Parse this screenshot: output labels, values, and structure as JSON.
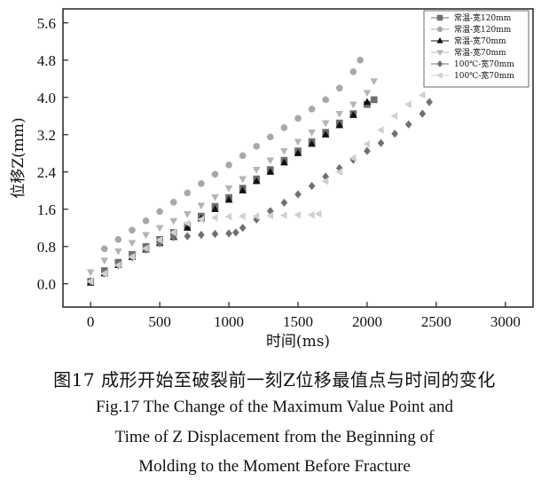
{
  "chart_data": {
    "type": "scatter",
    "xlabel": "时间(ms)",
    "ylabel": "位移Z(mm)",
    "xlim": [
      -200,
      3200
    ],
    "ylim": [
      -0.5,
      5.9
    ],
    "xticks": [
      "0",
      "500",
      "1000",
      "1500",
      "2000",
      "2500",
      "3000"
    ],
    "yticks": [
      "0.0",
      "0.8",
      "1.6",
      "2.4",
      "3.2",
      "4.0",
      "4.8",
      "5.6"
    ],
    "grid": false,
    "legend_position": "top-right",
    "series": [
      {
        "name": "常温-宽120mm",
        "marker": "square",
        "color": "#6e6e6e",
        "x": [
          0,
          100,
          200,
          300,
          400,
          500,
          600,
          700,
          800,
          900,
          1000,
          1100,
          1200,
          1300,
          1400,
          1500,
          1600,
          1700,
          1800,
          1900,
          2000,
          2050
        ],
        "y": [
          0.05,
          0.28,
          0.46,
          0.63,
          0.8,
          0.95,
          1.1,
          1.25,
          1.45,
          1.66,
          1.85,
          2.05,
          2.25,
          2.45,
          2.65,
          2.85,
          3.05,
          3.25,
          3.45,
          3.65,
          3.85,
          3.95
        ]
      },
      {
        "name": "常温-宽120mm",
        "marker": "circle",
        "color": "#a8a8a8",
        "x": [
          100,
          200,
          300,
          400,
          500,
          600,
          700,
          800,
          900,
          1000,
          1100,
          1200,
          1300,
          1400,
          1500,
          1600,
          1700,
          1800,
          1900,
          1950
        ],
        "y": [
          0.75,
          0.95,
          1.15,
          1.35,
          1.55,
          1.75,
          1.95,
          2.15,
          2.35,
          2.55,
          2.75,
          2.95,
          3.15,
          3.35,
          3.55,
          3.75,
          3.95,
          4.2,
          4.55,
          4.8
        ]
      },
      {
        "name": "常温-宽70mm",
        "marker": "triangle-up",
        "color": "#111111",
        "x": [
          0,
          100,
          200,
          300,
          400,
          500,
          600,
          700,
          800,
          900,
          1000,
          1100,
          1200,
          1300,
          1400,
          1500,
          1600,
          1700,
          1800,
          1900,
          2000
        ],
        "y": [
          0.02,
          0.22,
          0.4,
          0.57,
          0.73,
          0.87,
          1.0,
          1.2,
          1.4,
          1.6,
          1.8,
          2.0,
          2.2,
          2.4,
          2.6,
          2.8,
          3.0,
          3.2,
          3.4,
          3.62,
          3.9
        ]
      },
      {
        "name": "常温-宽70mm",
        "marker": "triangle-down",
        "color": "#b4b4b4",
        "x": [
          0,
          100,
          200,
          300,
          400,
          500,
          600,
          700,
          800,
          900,
          1000,
          1100,
          1200,
          1300,
          1400,
          1500,
          1600,
          1700,
          1800,
          1900,
          2000,
          2050
        ],
        "y": [
          0.25,
          0.5,
          0.7,
          0.88,
          1.05,
          1.2,
          1.35,
          1.5,
          1.68,
          1.86,
          2.05,
          2.25,
          2.45,
          2.65,
          2.85,
          3.05,
          3.25,
          3.45,
          3.65,
          3.85,
          4.1,
          4.35
        ]
      },
      {
        "name": "100℃-宽70mm",
        "marker": "diamond",
        "color": "#707070",
        "x": [
          0,
          100,
          200,
          300,
          400,
          500,
          600,
          700,
          800,
          900,
          1000,
          1050,
          1100,
          1200,
          1300,
          1400,
          1500,
          1600,
          1700,
          1800,
          1900,
          2000,
          2100,
          2200,
          2300,
          2400,
          2450
        ],
        "y": [
          0.05,
          0.22,
          0.4,
          0.57,
          0.73,
          0.87,
          1.0,
          1.02,
          1.05,
          1.07,
          1.08,
          1.1,
          1.2,
          1.38,
          1.56,
          1.74,
          1.92,
          2.1,
          2.3,
          2.48,
          2.66,
          2.85,
          3.02,
          3.22,
          3.42,
          3.65,
          3.9
        ]
      },
      {
        "name": "100℃-宽70mm",
        "marker": "triangle-left",
        "color": "#d0d0d0",
        "x": [
          0,
          100,
          200,
          300,
          400,
          500,
          600,
          700,
          800,
          900,
          1000,
          1100,
          1200,
          1300,
          1400,
          1500,
          1600,
          1650,
          1700,
          1800,
          1900,
          2000,
          2100,
          2200,
          2300,
          2400
        ],
        "y": [
          0.05,
          0.22,
          0.4,
          0.58,
          0.76,
          0.94,
          1.1,
          1.3,
          1.38,
          1.42,
          1.44,
          1.45,
          1.45,
          1.46,
          1.47,
          1.48,
          1.48,
          1.5,
          2.2,
          2.4,
          2.7,
          3.0,
          3.3,
          3.6,
          3.85,
          4.05
        ]
      }
    ]
  },
  "caption": {
    "zh": "图17  成形开始至破裂前一刻Z位移最值点与时间的变化",
    "en1": "Fig.17  The  Change  of  the  Maximum  Value  Point  and",
    "en2": "Time  of  Z  Displacement  from  the  Beginning  of",
    "en3": "Molding  to  the  Moment  Before  Fracture"
  }
}
